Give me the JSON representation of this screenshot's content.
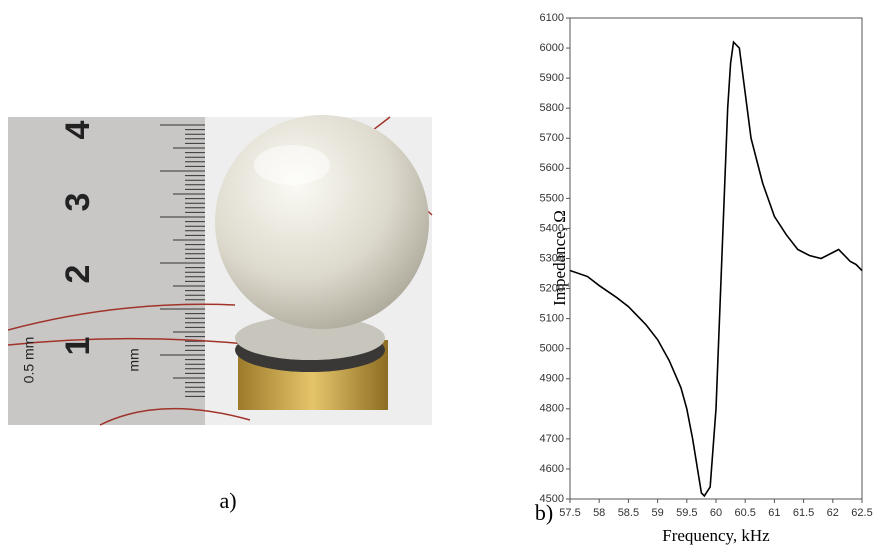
{
  "panels": {
    "a": "a)",
    "b": "b)"
  },
  "photo": {
    "ruler_labels": [
      "4",
      "3",
      "2",
      "1"
    ],
    "ruler_units": [
      "0.5 mm",
      "mm"
    ]
  },
  "chart_data": {
    "type": "line",
    "x_label": "Frequency, kHz",
    "y_label": "Impedance, Ω",
    "x": [
      57.5,
      57.8,
      58.0,
      58.3,
      58.5,
      58.8,
      59.0,
      59.2,
      59.4,
      59.5,
      59.6,
      59.7,
      59.75,
      59.8,
      59.9,
      60.0,
      60.1,
      60.2,
      60.25,
      60.3,
      60.4,
      60.5,
      60.6,
      60.8,
      61.0,
      61.2,
      61.4,
      61.6,
      61.8,
      62.0,
      62.1,
      62.2,
      62.3,
      62.4,
      62.5
    ],
    "values": [
      5260,
      5240,
      5210,
      5170,
      5140,
      5080,
      5030,
      4960,
      4870,
      4800,
      4700,
      4580,
      4520,
      4510,
      4540,
      4800,
      5300,
      5800,
      5950,
      6020,
      6000,
      5850,
      5700,
      5550,
      5440,
      5380,
      5330,
      5310,
      5300,
      5320,
      5330,
      5310,
      5290,
      5280,
      5260
    ],
    "color": "#000000",
    "xlim": [
      57.5,
      62.5
    ],
    "xticks": [
      57.5,
      58,
      58.5,
      59,
      59.5,
      60,
      60.5,
      61,
      61.5,
      62,
      62.5
    ],
    "ylim": [
      4500,
      6100
    ],
    "yticks": [
      4500,
      4600,
      4700,
      4800,
      4900,
      5000,
      5100,
      5200,
      5300,
      5400,
      5500,
      5600,
      5700,
      5800,
      5900,
      6000,
      6100
    ]
  }
}
